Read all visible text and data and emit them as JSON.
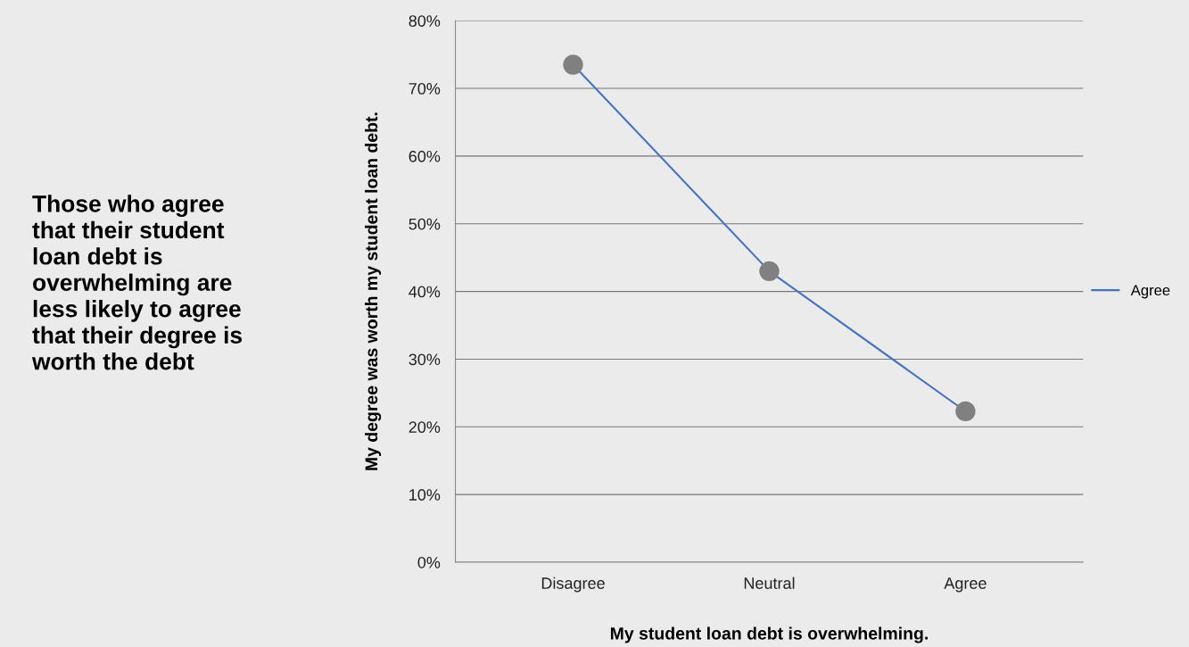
{
  "chart_data": {
    "type": "line",
    "title": "Those who agree that their student loan debt is overwhelming are less likely to agree that their degree is worth the debt",
    "xlabel": "My student loan debt is overwhelming.",
    "ylabel": "My degree was worth my student loan debt.",
    "categories": [
      "Disagree",
      "Neutral",
      "Agree"
    ],
    "series": [
      {
        "name": "Agree",
        "color": "#4472c4",
        "colors": [
          "#808080",
          "#808080",
          "#808080"
        ],
        "values": [
          73.5,
          43,
          22.3
        ]
      }
    ],
    "ylim": [
      0,
      80
    ],
    "yticks": [
      {
        "value": 0,
        "label": "0%"
      },
      {
        "value": 10,
        "label": "10%"
      },
      {
        "value": 20,
        "label": "20%"
      },
      {
        "value": 30,
        "label": "30%"
      },
      {
        "value": 40,
        "label": "40%"
      },
      {
        "value": 50,
        "label": "50%"
      },
      {
        "value": 60,
        "label": "60%"
      },
      {
        "value": 70,
        "label": "70%"
      },
      {
        "value": 80,
        "label": "80%"
      }
    ],
    "grid": "y",
    "legend": "right",
    "marker": "circle",
    "line_style": "solid"
  }
}
